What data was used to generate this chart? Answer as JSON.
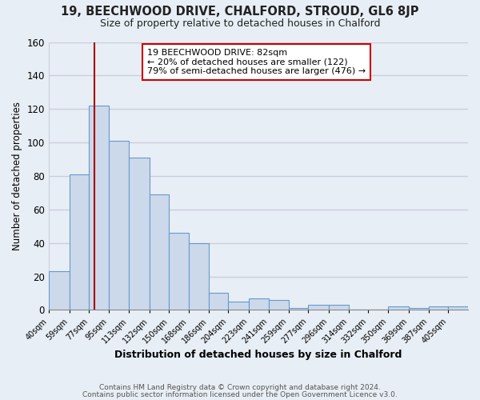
{
  "title": "19, BEECHWOOD DRIVE, CHALFORD, STROUD, GL6 8JP",
  "subtitle": "Size of property relative to detached houses in Chalford",
  "xlabel": "Distribution of detached houses by size in Chalford",
  "ylabel": "Number of detached properties",
  "bin_labels": [
    "40sqm",
    "59sqm",
    "77sqm",
    "95sqm",
    "113sqm",
    "132sqm",
    "150sqm",
    "168sqm",
    "186sqm",
    "204sqm",
    "223sqm",
    "241sqm",
    "259sqm",
    "277sqm",
    "296sqm",
    "314sqm",
    "332sqm",
    "350sqm",
    "369sqm",
    "387sqm",
    "405sqm"
  ],
  "bar_heights": [
    23,
    81,
    122,
    101,
    91,
    69,
    46,
    40,
    10,
    5,
    7,
    6,
    1,
    3,
    3,
    0,
    0,
    2,
    1,
    2,
    2
  ],
  "bar_color": "#ccd9ea",
  "bar_edge_color": "#6699cc",
  "ylim": [
    0,
    160
  ],
  "yticks": [
    0,
    20,
    40,
    60,
    80,
    100,
    120,
    140,
    160
  ],
  "property_line_x": 82,
  "property_line_color": "#aa0000",
  "annotation_title": "19 BEECHWOOD DRIVE: 82sqm",
  "annotation_line1": "← 20% of detached houses are smaller (122)",
  "annotation_line2": "79% of semi-detached houses are larger (476) →",
  "annotation_box_color": "#ffffff",
  "annotation_box_edge": "#cc0000",
  "background_color": "#e8eef5",
  "grid_color": "#ccccdd",
  "footer_line1": "Contains HM Land Registry data © Crown copyright and database right 2024.",
  "footer_line2": "Contains public sector information licensed under the Open Government Licence v3.0."
}
